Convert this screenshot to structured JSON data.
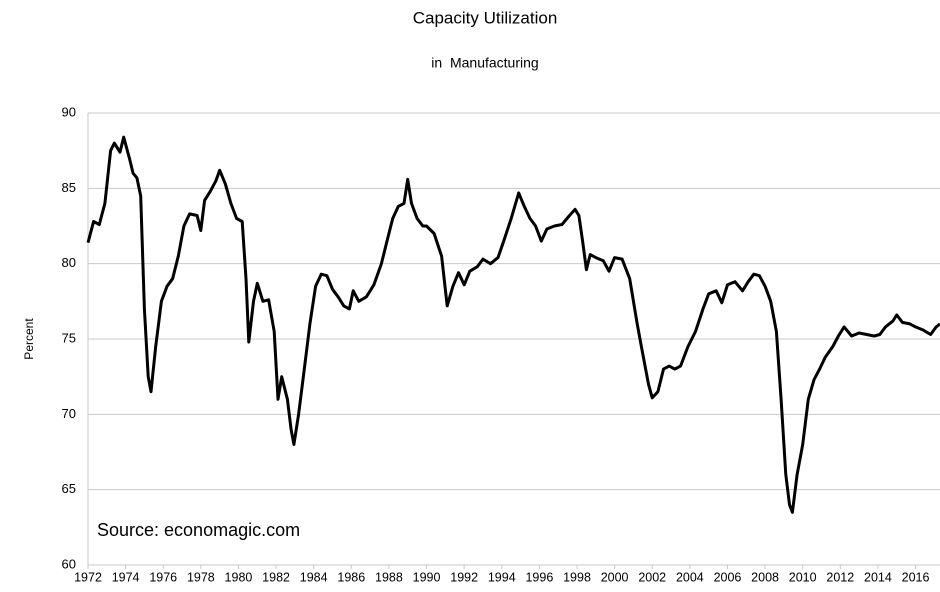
{
  "chart_data": {
    "type": "line",
    "title": "Capacity Utilization",
    "subtitle": "in  Manufacturing",
    "y_label": "Percent",
    "annotation": "Source: economagic.com",
    "x": [
      1972.0,
      1972.3,
      1972.6,
      1972.9,
      1973.2,
      1973.4,
      1973.7,
      1973.9,
      1974.2,
      1974.4,
      1974.6,
      1974.8,
      1975.0,
      1975.2,
      1975.35,
      1975.6,
      1975.9,
      1976.2,
      1976.5,
      1976.8,
      1977.1,
      1977.4,
      1977.8,
      1978.0,
      1978.2,
      1978.5,
      1978.8,
      1979.0,
      1979.3,
      1979.6,
      1979.9,
      1980.2,
      1980.4,
      1980.55,
      1980.8,
      1981.0,
      1981.3,
      1981.6,
      1981.9,
      1982.1,
      1982.3,
      1982.6,
      1982.8,
      1982.95,
      1983.2,
      1983.5,
      1983.8,
      1984.1,
      1984.4,
      1984.7,
      1985.0,
      1985.3,
      1985.6,
      1985.9,
      1986.1,
      1986.4,
      1986.8,
      1987.2,
      1987.6,
      1987.9,
      1988.2,
      1988.5,
      1988.8,
      1989.0,
      1989.2,
      1989.5,
      1989.8,
      1990.0,
      1990.4,
      1990.8,
      1991.1,
      1991.4,
      1991.7,
      1992.0,
      1992.3,
      1992.7,
      1993.0,
      1993.4,
      1993.8,
      1994.1,
      1994.5,
      1994.9,
      1995.2,
      1995.5,
      1995.8,
      1996.1,
      1996.4,
      1996.8,
      1997.2,
      1997.6,
      1997.9,
      1998.1,
      1998.3,
      1998.5,
      1998.7,
      1999.0,
      1999.4,
      1999.7,
      2000.0,
      2000.4,
      2000.8,
      2001.2,
      2001.5,
      2001.8,
      2002.0,
      2002.3,
      2002.6,
      2002.9,
      2003.2,
      2003.5,
      2003.9,
      2004.3,
      2004.7,
      2005.0,
      2005.4,
      2005.7,
      2006.0,
      2006.4,
      2006.8,
      2007.1,
      2007.4,
      2007.7,
      2008.0,
      2008.3,
      2008.6,
      2008.85,
      2009.1,
      2009.3,
      2009.45,
      2009.7,
      2010.0,
      2010.3,
      2010.6,
      2010.9,
      2011.2,
      2011.6,
      2011.9,
      2012.2,
      2012.6,
      2013.0,
      2013.4,
      2013.8,
      2014.1,
      2014.4,
      2014.8,
      2015.0,
      2015.3,
      2015.7,
      2016.0,
      2016.4,
      2016.8,
      2017.1,
      2017.3
    ],
    "series": [
      {
        "name": "Capacity Utilization",
        "color": "#000000",
        "values": [
          81.4,
          82.8,
          82.6,
          84,
          87.5,
          88.0,
          87.4,
          88.4,
          87,
          86,
          85.7,
          84.5,
          77,
          72.5,
          71.5,
          74.5,
          77.5,
          78.5,
          79,
          80.5,
          82.5,
          83.3,
          83.2,
          82.2,
          84.2,
          84.8,
          85.5,
          86.2,
          85.3,
          84,
          83,
          82.8,
          79,
          74.8,
          77.5,
          78.7,
          77.5,
          77.6,
          75.5,
          71,
          72.5,
          71,
          69,
          68,
          70,
          73,
          76,
          78.5,
          79.3,
          79.2,
          78.3,
          77.8,
          77.2,
          77,
          78.2,
          77.5,
          77.8,
          78.6,
          80,
          81.5,
          83,
          83.8,
          84,
          85.6,
          84,
          83,
          82.5,
          82.5,
          82,
          80.5,
          77.2,
          78.5,
          79.4,
          78.6,
          79.5,
          79.8,
          80.3,
          80.0,
          80.4,
          81.5,
          83,
          84.7,
          83.8,
          83,
          82.5,
          81.5,
          82.3,
          82.5,
          82.6,
          83.2,
          83.6,
          83.2,
          81.5,
          79.6,
          80.6,
          80.4,
          80.2,
          79.5,
          80.4,
          80.3,
          79,
          76,
          74,
          72,
          71.1,
          71.5,
          73,
          73.2,
          73,
          73.2,
          74.5,
          75.5,
          77,
          78,
          78.2,
          77.4,
          78.6,
          78.8,
          78.2,
          78.8,
          79.3,
          79.2,
          78.5,
          77.5,
          75.5,
          71,
          66,
          64,
          63.5,
          66,
          68,
          71,
          72.3,
          73,
          73.8,
          74.5,
          75.2,
          75.8,
          75.2,
          75.4,
          75.3,
          75.2,
          75.3,
          75.8,
          76.2,
          76.6,
          76.1,
          76.0,
          75.8,
          75.6,
          75.3,
          75.8,
          76.0
        ]
      }
    ],
    "xlim": [
      1972,
      2017.3
    ],
    "xticks": [
      1972,
      1974,
      1976,
      1978,
      1980,
      1982,
      1984,
      1986,
      1988,
      1990,
      1992,
      1994,
      1996,
      1998,
      2000,
      2002,
      2004,
      2006,
      2008,
      2010,
      2012,
      2014,
      2016
    ],
    "ylim": [
      60,
      90
    ],
    "yticks": [
      60,
      65,
      70,
      75,
      80,
      85,
      90
    ],
    "grid": true
  }
}
